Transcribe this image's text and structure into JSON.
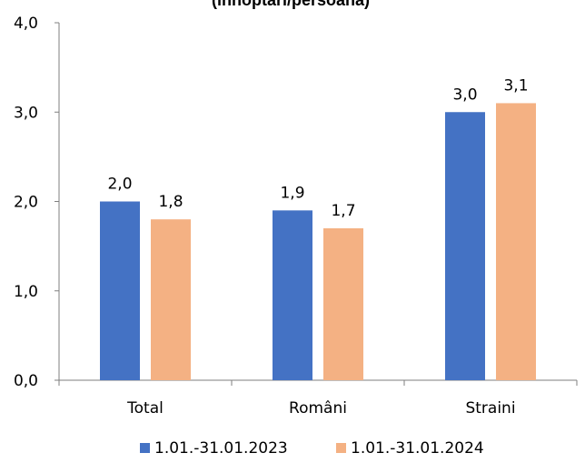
{
  "chart_data": {
    "type": "bar",
    "title": "(înnoptări/persoană)",
    "categories": [
      "Total",
      "Români",
      "Straini"
    ],
    "series": [
      {
        "name": "1.01.-31.01.2023",
        "values": [
          2.0,
          1.9,
          3.0
        ],
        "labels": [
          "2,0",
          "1,9",
          "3,0"
        ],
        "color": "#4472C4"
      },
      {
        "name": "1.01.-31.01.2024",
        "values": [
          1.8,
          1.7,
          3.1
        ],
        "labels": [
          "1,8",
          "1,7",
          "3,1"
        ],
        "color": "#F4B183"
      }
    ],
    "yticks": [
      {
        "value": 0,
        "label": "0,0"
      },
      {
        "value": 1,
        "label": "1,0"
      },
      {
        "value": 2,
        "label": "2,0"
      },
      {
        "value": 3,
        "label": "3,0"
      },
      {
        "value": 4,
        "label": "4,0"
      }
    ],
    "ylim": [
      0,
      4
    ],
    "xlabel": "",
    "ylabel": "",
    "grid": false,
    "legend_position": "bottom"
  }
}
